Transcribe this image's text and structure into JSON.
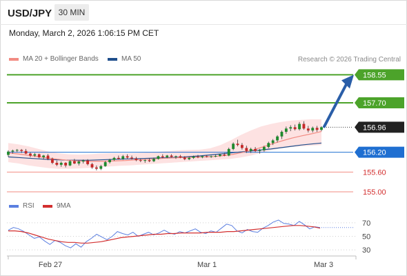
{
  "header": {
    "symbol": "USD/JPY",
    "interval": "30 MIN",
    "datetime": "Monday, March 2, 2026 1:06:15 PM CET"
  },
  "legend": {
    "ma20_label": "MA 20 + Bollinger Bands",
    "ma50_label": "MA 50",
    "credit": "Research © 2026 Trading Central"
  },
  "rsi_legend": {
    "rsi_label": "RSI",
    "ma9_label": "9MA"
  },
  "colors": {
    "candle_up": "#1f8a2e",
    "candle_down": "#c62828",
    "bollinger_fill": "#fde2e2",
    "ma20": "#f28b82",
    "ma50": "#1f4e8c",
    "target": "#4ca32a",
    "support": "#f28b82",
    "pivot": "#1f6fd1",
    "last_price": "#222222",
    "arrow": "#2a5ea8",
    "rsi": "#5b7fe0",
    "rsi_ma": "#d32f2f"
  },
  "chart_data": [
    {
      "type": "candlestick",
      "title": "USD/JPY",
      "ylim": [
        154.75,
        158.85
      ],
      "x_ticks": [
        "Feb 27",
        "Mar 1",
        "Mar 3"
      ],
      "ohlc": [
        [
          156.12,
          156.26,
          156.06,
          156.22
        ],
        [
          156.22,
          156.28,
          156.16,
          156.25
        ],
        [
          156.25,
          156.3,
          156.2,
          156.27
        ],
        [
          156.27,
          156.3,
          156.18,
          156.24
        ],
        [
          156.24,
          156.3,
          156.14,
          156.16
        ],
        [
          156.16,
          156.2,
          156.05,
          156.1
        ],
        [
          156.1,
          156.18,
          156.06,
          156.14
        ],
        [
          156.14,
          156.16,
          156.02,
          156.05
        ],
        [
          156.05,
          156.12,
          155.98,
          156.1
        ],
        [
          156.1,
          156.15,
          155.96,
          156.0
        ],
        [
          156.0,
          156.04,
          155.84,
          155.88
        ],
        [
          155.88,
          155.95,
          155.78,
          155.82
        ],
        [
          155.82,
          155.92,
          155.76,
          155.88
        ],
        [
          155.88,
          155.9,
          155.74,
          155.8
        ],
        [
          155.8,
          155.96,
          155.78,
          155.93
        ],
        [
          155.93,
          156.0,
          155.84,
          155.86
        ],
        [
          155.86,
          155.95,
          155.8,
          155.92
        ],
        [
          155.92,
          155.98,
          155.86,
          155.95
        ],
        [
          155.95,
          155.99,
          155.8,
          155.84
        ],
        [
          155.84,
          155.88,
          155.7,
          155.74
        ],
        [
          155.74,
          155.8,
          155.65,
          155.7
        ],
        [
          155.7,
          155.82,
          155.66,
          155.78
        ],
        [
          155.78,
          155.94,
          155.76,
          155.9
        ],
        [
          155.9,
          156.0,
          155.86,
          155.97
        ],
        [
          155.97,
          156.06,
          155.94,
          156.03
        ],
        [
          156.03,
          156.1,
          155.98,
          156.0
        ],
        [
          156.0,
          156.12,
          155.97,
          156.08
        ],
        [
          156.08,
          156.14,
          156.0,
          156.04
        ],
        [
          156.04,
          156.1,
          155.98,
          156.01
        ],
        [
          156.01,
          156.06,
          155.93,
          155.96
        ],
        [
          155.96,
          156.0,
          155.9,
          155.94
        ],
        [
          155.94,
          155.99,
          155.88,
          155.96
        ],
        [
          155.96,
          156.02,
          155.9,
          155.93
        ],
        [
          155.93,
          156.04,
          155.9,
          156.0
        ],
        [
          156.0,
          156.1,
          155.98,
          156.08
        ],
        [
          156.08,
          156.14,
          156.02,
          156.05
        ],
        [
          156.05,
          156.12,
          156.02,
          156.1
        ],
        [
          156.1,
          156.14,
          156.04,
          156.06
        ],
        [
          156.06,
          156.1,
          156.0,
          156.08
        ],
        [
          156.08,
          156.12,
          156.02,
          156.04
        ],
        [
          156.04,
          156.08,
          155.96,
          155.99
        ],
        [
          155.99,
          156.06,
          155.96,
          156.03
        ],
        [
          156.03,
          156.1,
          156.0,
          156.07
        ],
        [
          156.07,
          156.12,
          156.02,
          156.05
        ],
        [
          156.05,
          156.1,
          156.02,
          156.08
        ],
        [
          156.08,
          156.12,
          156.04,
          156.06
        ],
        [
          156.06,
          156.1,
          156.03,
          156.08
        ],
        [
          156.08,
          156.12,
          156.05,
          156.09
        ],
        [
          156.09,
          156.16,
          156.06,
          156.13
        ],
        [
          156.13,
          156.18,
          156.08,
          156.1
        ],
        [
          156.1,
          156.34,
          156.08,
          156.3
        ],
        [
          156.3,
          156.5,
          156.26,
          156.46
        ],
        [
          156.46,
          156.58,
          156.38,
          156.42
        ],
        [
          156.42,
          156.48,
          156.28,
          156.33
        ],
        [
          156.33,
          156.4,
          156.18,
          156.24
        ],
        [
          156.24,
          156.34,
          156.18,
          156.3
        ],
        [
          156.3,
          156.36,
          156.2,
          156.24
        ],
        [
          156.24,
          156.3,
          156.16,
          156.26
        ],
        [
          156.26,
          156.4,
          156.22,
          156.36
        ],
        [
          156.36,
          156.52,
          156.32,
          156.48
        ],
        [
          156.48,
          156.6,
          156.42,
          156.56
        ],
        [
          156.56,
          156.72,
          156.5,
          156.68
        ],
        [
          156.68,
          156.86,
          156.6,
          156.82
        ],
        [
          156.82,
          156.98,
          156.76,
          156.92
        ],
        [
          156.92,
          157.02,
          156.84,
          156.96
        ],
        [
          156.96,
          157.04,
          156.86,
          156.9
        ],
        [
          156.9,
          157.12,
          156.86,
          157.06
        ],
        [
          157.06,
          157.14,
          156.88,
          156.92
        ],
        [
          156.92,
          157.0,
          156.8,
          156.86
        ],
        [
          156.86,
          156.98,
          156.8,
          156.94
        ],
        [
          156.94,
          157.0,
          156.82,
          156.88
        ],
        [
          156.88,
          156.99,
          156.84,
          156.96
        ]
      ],
      "ma20": [
        156.18,
        156.15,
        156.11,
        156.07,
        156.03,
        155.99,
        155.96,
        155.94,
        155.93,
        155.93,
        155.93,
        155.94,
        155.95,
        155.97,
        155.98,
        156.0,
        156.02,
        156.03,
        156.04,
        156.05,
        156.06,
        156.07,
        156.1,
        156.14,
        156.2,
        156.27,
        156.36,
        156.46,
        156.55,
        156.63,
        156.7,
        156.76,
        156.83
      ],
      "ma50": [
        156.06,
        156.04,
        156.02,
        156.0,
        155.98,
        155.97,
        155.96,
        155.96,
        155.96,
        155.97,
        155.98,
        155.99,
        156.0,
        156.01,
        156.02,
        156.03,
        156.04,
        156.05,
        156.07,
        156.09,
        156.12,
        156.15,
        156.18,
        156.21,
        156.24,
        156.27,
        156.3,
        156.34,
        156.38,
        156.42,
        156.45,
        156.48
      ],
      "bollinger_upper": [
        156.48,
        156.44,
        156.38,
        156.3,
        156.22,
        156.17,
        156.14,
        156.13,
        156.14,
        156.16,
        156.17,
        156.17,
        156.17,
        156.18,
        156.2,
        156.22,
        156.24,
        156.26,
        156.27,
        156.28,
        156.32,
        156.42,
        156.56,
        156.72,
        156.86,
        156.98,
        157.06,
        157.12,
        157.16,
        157.18,
        157.2,
        157.2
      ],
      "bollinger_lower": [
        155.9,
        155.86,
        155.8,
        155.76,
        155.72,
        155.7,
        155.7,
        155.71,
        155.73,
        155.75,
        155.77,
        155.79,
        155.8,
        155.82,
        155.84,
        155.86,
        155.88,
        155.9,
        155.92,
        155.94,
        155.96,
        155.98,
        156.0,
        156.04,
        156.1,
        156.18,
        156.26,
        156.32,
        156.36,
        156.38,
        156.4,
        156.42
      ],
      "levels": [
        {
          "label": "158.55",
          "value": 158.55,
          "kind": "target"
        },
        {
          "label": "157.70",
          "value": 157.7,
          "kind": "target"
        },
        {
          "label": "156.96",
          "value": 156.96,
          "kind": "last"
        },
        {
          "label": "156.20",
          "value": 156.2,
          "kind": "pivot"
        },
        {
          "label": "155.60",
          "value": 155.6,
          "kind": "support"
        },
        {
          "label": "155.00",
          "value": 155.0,
          "kind": "support"
        }
      ],
      "arrow": {
        "from": 156.98,
        "to": 158.55,
        "direction": "up"
      }
    },
    {
      "type": "line",
      "title": "RSI",
      "ylim": [
        24,
        80
      ],
      "y_ticks": [
        70,
        50,
        30
      ],
      "series": [
        {
          "name": "RSI",
          "values": [
            59,
            63,
            61,
            57,
            52,
            47,
            49,
            43,
            38,
            44,
            41,
            36,
            33,
            39,
            34,
            42,
            47,
            53,
            49,
            45,
            50,
            57,
            54,
            52,
            56,
            50,
            53,
            56,
            52,
            55,
            59,
            55,
            53,
            57,
            55,
            58,
            61,
            56,
            54,
            58,
            56,
            62,
            68,
            66,
            58,
            55,
            60,
            57,
            56,
            62,
            66,
            71,
            74,
            69,
            68,
            66,
            72,
            67,
            61,
            64,
            63
          ]
        },
        {
          "name": "9MA",
          "values": [
            58,
            58,
            57,
            55,
            52,
            49,
            46,
            44,
            42,
            41,
            41,
            40,
            40,
            41,
            42,
            44,
            46,
            48,
            49,
            50,
            51,
            52,
            53,
            53,
            54,
            54,
            55,
            55,
            55,
            55,
            56,
            56,
            56,
            57,
            57,
            58,
            59,
            60,
            61,
            62,
            63,
            64,
            65,
            66,
            66,
            65,
            64,
            62
          ]
        }
      ]
    }
  ]
}
